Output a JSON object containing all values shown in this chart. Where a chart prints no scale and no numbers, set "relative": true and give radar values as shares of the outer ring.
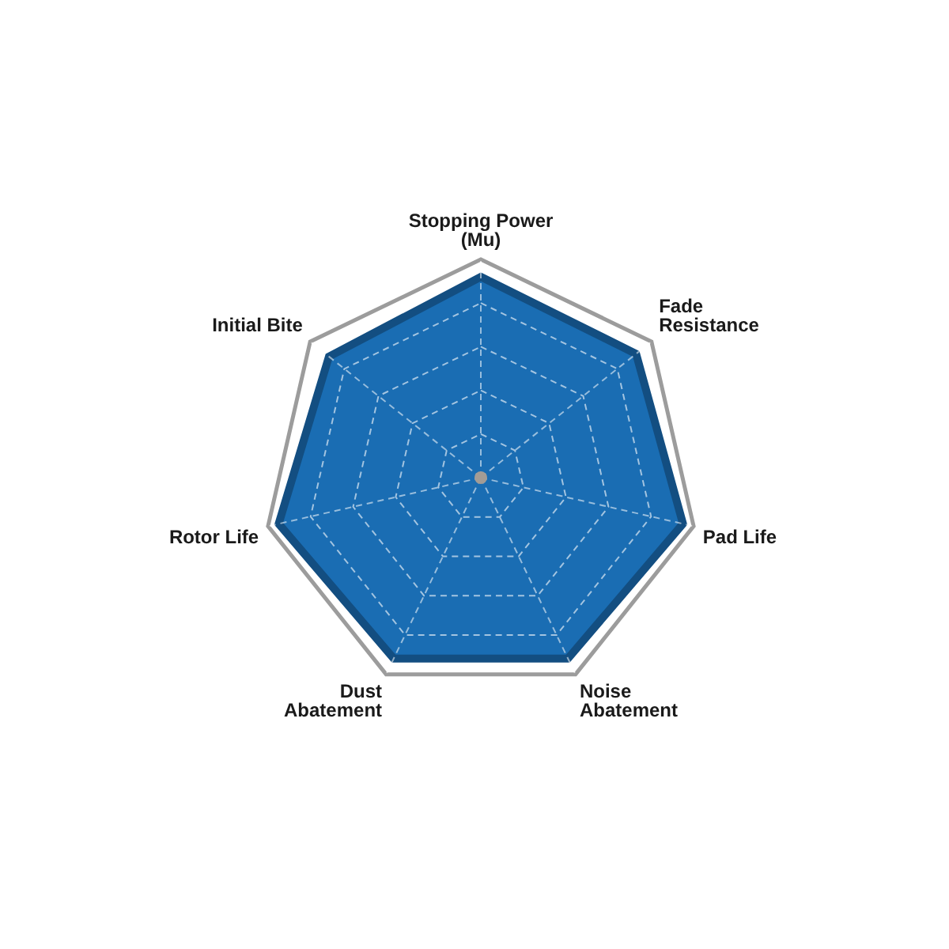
{
  "chart_data": {
    "type": "radar",
    "categories": [
      "Stopping Power\n(Mu)",
      "Fade\nResistance",
      "Pad Life",
      "Noise\nAbatement",
      "Dust\nAbatement",
      "Rotor Life",
      "Initial Bite"
    ],
    "relative": true,
    "grid": true,
    "series": [
      {
        "color": "#1a6db3",
        "values": [
          0.92,
          0.91,
          0.95,
          0.92,
          0.92,
          0.95,
          0.89
        ]
      }
    ]
  }
}
